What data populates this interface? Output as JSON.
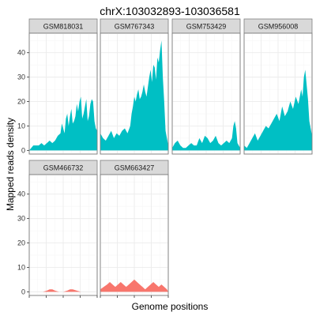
{
  "chart_data": {
    "type": "area",
    "title": "chrX:103032893-103036581",
    "xlabel": "Genome positions",
    "ylabel": "Mapped reads density",
    "ylim": [
      -1.5,
      48
    ],
    "yticks": [
      0,
      10,
      20,
      30,
      40
    ],
    "xlim": [
      0,
      1
    ],
    "grid": true,
    "layout": {
      "ncol": 4,
      "nrow": 2
    },
    "colors": {
      "group1": "#00bfc4",
      "group2": "#f8766d"
    },
    "panels": [
      {
        "name": "GSM818031",
        "color": "#00bfc4",
        "x": [
          0,
          0.03,
          0.06,
          0.1,
          0.14,
          0.18,
          0.22,
          0.26,
          0.3,
          0.34,
          0.38,
          0.42,
          0.46,
          0.48,
          0.5,
          0.52,
          0.54,
          0.56,
          0.58,
          0.6,
          0.62,
          0.64,
          0.66,
          0.68,
          0.7,
          0.72,
          0.74,
          0.76,
          0.78,
          0.8,
          0.82,
          0.84,
          0.86,
          0.88,
          0.9,
          0.92,
          0.94,
          0.96,
          0.98,
          1.0
        ],
        "values": [
          0,
          1,
          2,
          2,
          2,
          3,
          2,
          3,
          4,
          3,
          4,
          6,
          7,
          11,
          9,
          7,
          13,
          15,
          10,
          14,
          17,
          11,
          12,
          14,
          19,
          16,
          20,
          22,
          13,
          15,
          18,
          21,
          12,
          14,
          19,
          21,
          20,
          12,
          9,
          8
        ]
      },
      {
        "name": "GSM767343",
        "color": "#00bfc4",
        "x": [
          0,
          0.04,
          0.08,
          0.12,
          0.16,
          0.2,
          0.24,
          0.28,
          0.32,
          0.36,
          0.4,
          0.44,
          0.46,
          0.48,
          0.5,
          0.52,
          0.54,
          0.56,
          0.58,
          0.6,
          0.62,
          0.64,
          0.66,
          0.68,
          0.7,
          0.72,
          0.74,
          0.76,
          0.78,
          0.8,
          0.82,
          0.84,
          0.86,
          0.88,
          0.9,
          0.92,
          0.94,
          0.96,
          1.0
        ],
        "values": [
          7,
          5,
          4,
          6,
          8,
          5,
          7,
          6,
          8,
          9,
          7,
          10,
          15,
          18,
          22,
          20,
          23,
          25,
          21,
          22,
          24,
          27,
          24,
          22,
          26,
          30,
          33,
          28,
          35,
          34,
          29,
          38,
          36,
          41,
          45,
          30,
          20,
          8,
          2
        ]
      },
      {
        "name": "GSM753429",
        "color": "#00bfc4",
        "x": [
          0,
          0.04,
          0.08,
          0.12,
          0.16,
          0.2,
          0.24,
          0.28,
          0.32,
          0.36,
          0.4,
          0.44,
          0.48,
          0.52,
          0.56,
          0.6,
          0.64,
          0.68,
          0.72,
          0.76,
          0.8,
          0.84,
          0.88,
          0.9,
          0.92,
          0.94,
          0.96,
          1.0
        ],
        "values": [
          1,
          3,
          4,
          2,
          1,
          1,
          2,
          3,
          2,
          2,
          5,
          3,
          6,
          5,
          3,
          4,
          6,
          3,
          2,
          3,
          4,
          3,
          5,
          10,
          12,
          9,
          3,
          1
        ]
      },
      {
        "name": "GSM956008",
        "color": "#00bfc4",
        "x": [
          0,
          0.04,
          0.08,
          0.12,
          0.16,
          0.2,
          0.24,
          0.28,
          0.32,
          0.36,
          0.4,
          0.44,
          0.48,
          0.52,
          0.56,
          0.6,
          0.64,
          0.68,
          0.72,
          0.76,
          0.8,
          0.84,
          0.86,
          0.88,
          0.9,
          0.92,
          0.94,
          0.96,
          1.0
        ],
        "values": [
          2,
          1,
          3,
          5,
          7,
          4,
          6,
          8,
          10,
          9,
          11,
          13,
          15,
          12,
          18,
          14,
          16,
          20,
          17,
          22,
          19,
          25,
          22,
          30,
          33,
          27,
          21,
          12,
          6
        ]
      },
      {
        "name": "GSM466732",
        "color": "#f8766d",
        "x": [
          0,
          0.2,
          0.26,
          0.3,
          0.34,
          0.38,
          0.44,
          0.5,
          0.56,
          0.6,
          0.64,
          0.7,
          0.76,
          1.0
        ],
        "values": [
          0,
          0,
          0.5,
          1,
          1,
          0.5,
          0,
          0,
          0.5,
          1,
          1,
          0.5,
          0,
          0
        ]
      },
      {
        "name": "GSM663427",
        "color": "#f8766d",
        "x": [
          0,
          0.05,
          0.1,
          0.14,
          0.18,
          0.22,
          0.26,
          0.3,
          0.34,
          0.38,
          0.42,
          0.46,
          0.5,
          0.54,
          0.58,
          0.62,
          0.66,
          0.7,
          0.74,
          0.78,
          0.82,
          0.86,
          0.9,
          0.94,
          0.98,
          1.0
        ],
        "values": [
          1,
          2,
          3,
          4,
          3,
          2,
          3,
          4,
          3,
          2,
          3,
          4,
          5,
          4,
          3,
          2,
          1,
          2,
          3,
          4,
          3,
          2,
          3,
          2,
          1,
          0
        ]
      }
    ]
  }
}
